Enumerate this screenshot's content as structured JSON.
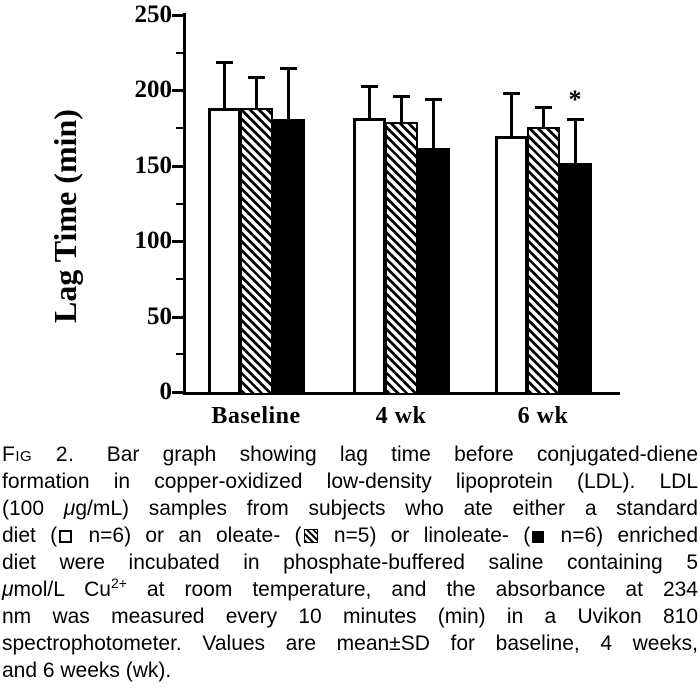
{
  "chart_data": {
    "type": "bar",
    "title": "",
    "ylabel": "Lag Time (min)",
    "xlabel": "",
    "ylim": [
      0,
      250
    ],
    "yticks": [
      0,
      50,
      100,
      150,
      200,
      250
    ],
    "y_minor_ticks": [
      25,
      75,
      125,
      175,
      225
    ],
    "categories": [
      "Baseline",
      "4 wk",
      "6 wk"
    ],
    "series": [
      {
        "name": "standard diet",
        "n": 6,
        "fill": "open",
        "values": [
          188,
          182,
          170
        ],
        "sd": [
          31,
          21,
          28
        ]
      },
      {
        "name": "oleate-enriched diet",
        "n": 5,
        "fill": "hatched",
        "values": [
          188,
          179,
          176
        ],
        "sd": [
          21,
          17,
          13
        ]
      },
      {
        "name": "linoleate-enriched diet",
        "n": 6,
        "fill": "filled",
        "values": [
          181,
          162,
          152
        ],
        "sd": [
          34,
          32,
          29
        ]
      }
    ],
    "error_bars": "mean+SD (upper only)",
    "annotations": [
      {
        "text": "*",
        "category": "6 wk",
        "series": "linoleate-enriched diet"
      }
    ],
    "grid": false,
    "legend_position": "in caption"
  },
  "caption": {
    "lines": [
      {
        "justify": true,
        "segments": [
          {
            "type": "smallcaps",
            "text": "Fig 2."
          },
          {
            "type": "text",
            "text": " Bar graph showing lag time before conjugated-diene"
          }
        ]
      },
      {
        "justify": true,
        "segments": [
          {
            "type": "text",
            "text": "formation in copper-oxidized low-density lipoprotein (LDL). LDL"
          }
        ]
      },
      {
        "justify": true,
        "segments": [
          {
            "type": "text",
            "text": "(100 "
          },
          {
            "type": "mu",
            "text": "μ"
          },
          {
            "type": "text",
            "text": "g/mL) samples from subjects who ate either a standard"
          }
        ]
      },
      {
        "justify": true,
        "segments": [
          {
            "type": "text",
            "text": "diet ("
          },
          {
            "type": "square-open"
          },
          {
            "type": "text",
            "text": " n=6) or an oleate- ("
          },
          {
            "type": "square-hatched"
          },
          {
            "type": "text",
            "text": " n=5) or linoleate- ("
          },
          {
            "type": "square-filled"
          },
          {
            "type": "text",
            "text": " n=6) enriched"
          }
        ]
      },
      {
        "justify": true,
        "segments": [
          {
            "type": "text",
            "text": "diet were incubated in phosphate-buffered saline containing 5"
          }
        ]
      },
      {
        "justify": true,
        "segments": [
          {
            "type": "mu",
            "text": "μ"
          },
          {
            "type": "text",
            "text": "mol/L Cu"
          },
          {
            "type": "sup",
            "text": "2+"
          },
          {
            "type": "text",
            "text": " at room temperature, and the absorbance at 234"
          }
        ]
      },
      {
        "justify": true,
        "segments": [
          {
            "type": "text",
            "text": "nm was measured every 10 minutes (min) in a Uvikon 810"
          }
        ]
      },
      {
        "justify": true,
        "segments": [
          {
            "type": "text",
            "text": "spectrophotometer. Values are mean±SD for baseline, 4 weeks,"
          }
        ]
      },
      {
        "justify": false,
        "segments": [
          {
            "type": "text",
            "text": "and 6 weeks (wk)."
          }
        ]
      }
    ]
  }
}
